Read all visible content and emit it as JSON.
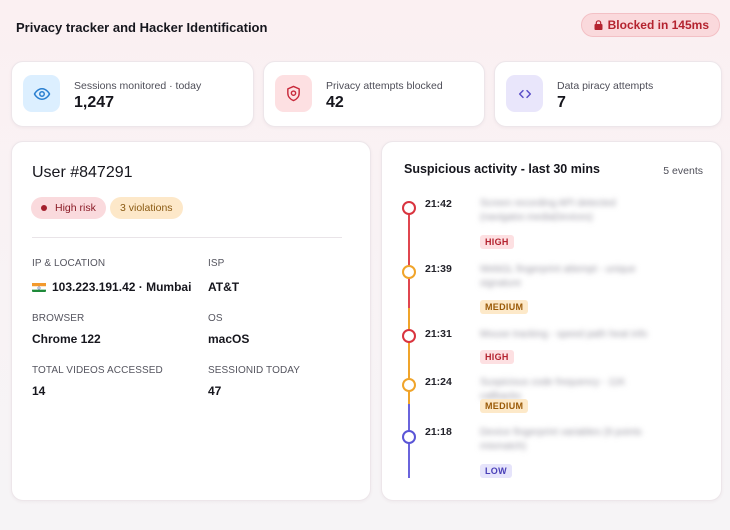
{
  "header": {
    "title": "Privacy tracker and Hacker Identification",
    "blocked_label": "Blocked in 145ms"
  },
  "stats": [
    {
      "label": "Sessions monitored · today",
      "value": "1,247",
      "icon": "eye-icon",
      "icon_bg": "#dcefff",
      "icon_color": "#2a7fd0"
    },
    {
      "label": "Privacy attempts blocked",
      "value": "42",
      "icon": "shield-icon",
      "icon_bg": "#fde0e2",
      "icon_color": "#c8283a"
    },
    {
      "label": "Data piracy attempts",
      "value": "7",
      "icon": "code-icon",
      "icon_bg": "#e9e6fb",
      "icon_color": "#5a4fc8"
    }
  ],
  "user": {
    "title": "User #847291",
    "risk_label": "High risk",
    "violations_label": "3 violations",
    "fields": {
      "ip_label": "IP & LOCATION",
      "ip_value": "103.223.191.42 · Mumbai",
      "isp_label": "ISP",
      "isp_value": "AT&T",
      "browser_label": "BROWSER",
      "browser_value": "Chrome 122",
      "os_label": "OS",
      "os_value": "macOS",
      "videos_label": "TOTAL VIDEOS ACCESSED",
      "videos_value": "14",
      "sessions_label": "SESSIONID TODAY",
      "sessions_value": "47"
    }
  },
  "activity": {
    "title": "Suspicious activity - last 30 mins",
    "count_label": "5 events",
    "events": [
      {
        "time": "21:42",
        "desc": "Screen recording API detected (navigator.mediaDevices)",
        "severity": "HIGH",
        "color": "#d9343f"
      },
      {
        "time": "21:39",
        "desc": "WebGL fingerprint attempt - unique signature",
        "severity": "MEDIUM",
        "color": "#f0a42a"
      },
      {
        "time": "21:31",
        "desc": "Mouse tracking - speed path heat info",
        "severity": "HIGH",
        "color": "#d9343f"
      },
      {
        "time": "21:24",
        "desc": "Suspicious code frequency - 11K callbacks",
        "severity": "MEDIUM",
        "color": "#f0a42a"
      },
      {
        "time": "21:18",
        "desc": "Device fingerprint variables (9 points mismatch)",
        "severity": "LOW",
        "color": "#5a55d6"
      }
    ]
  }
}
